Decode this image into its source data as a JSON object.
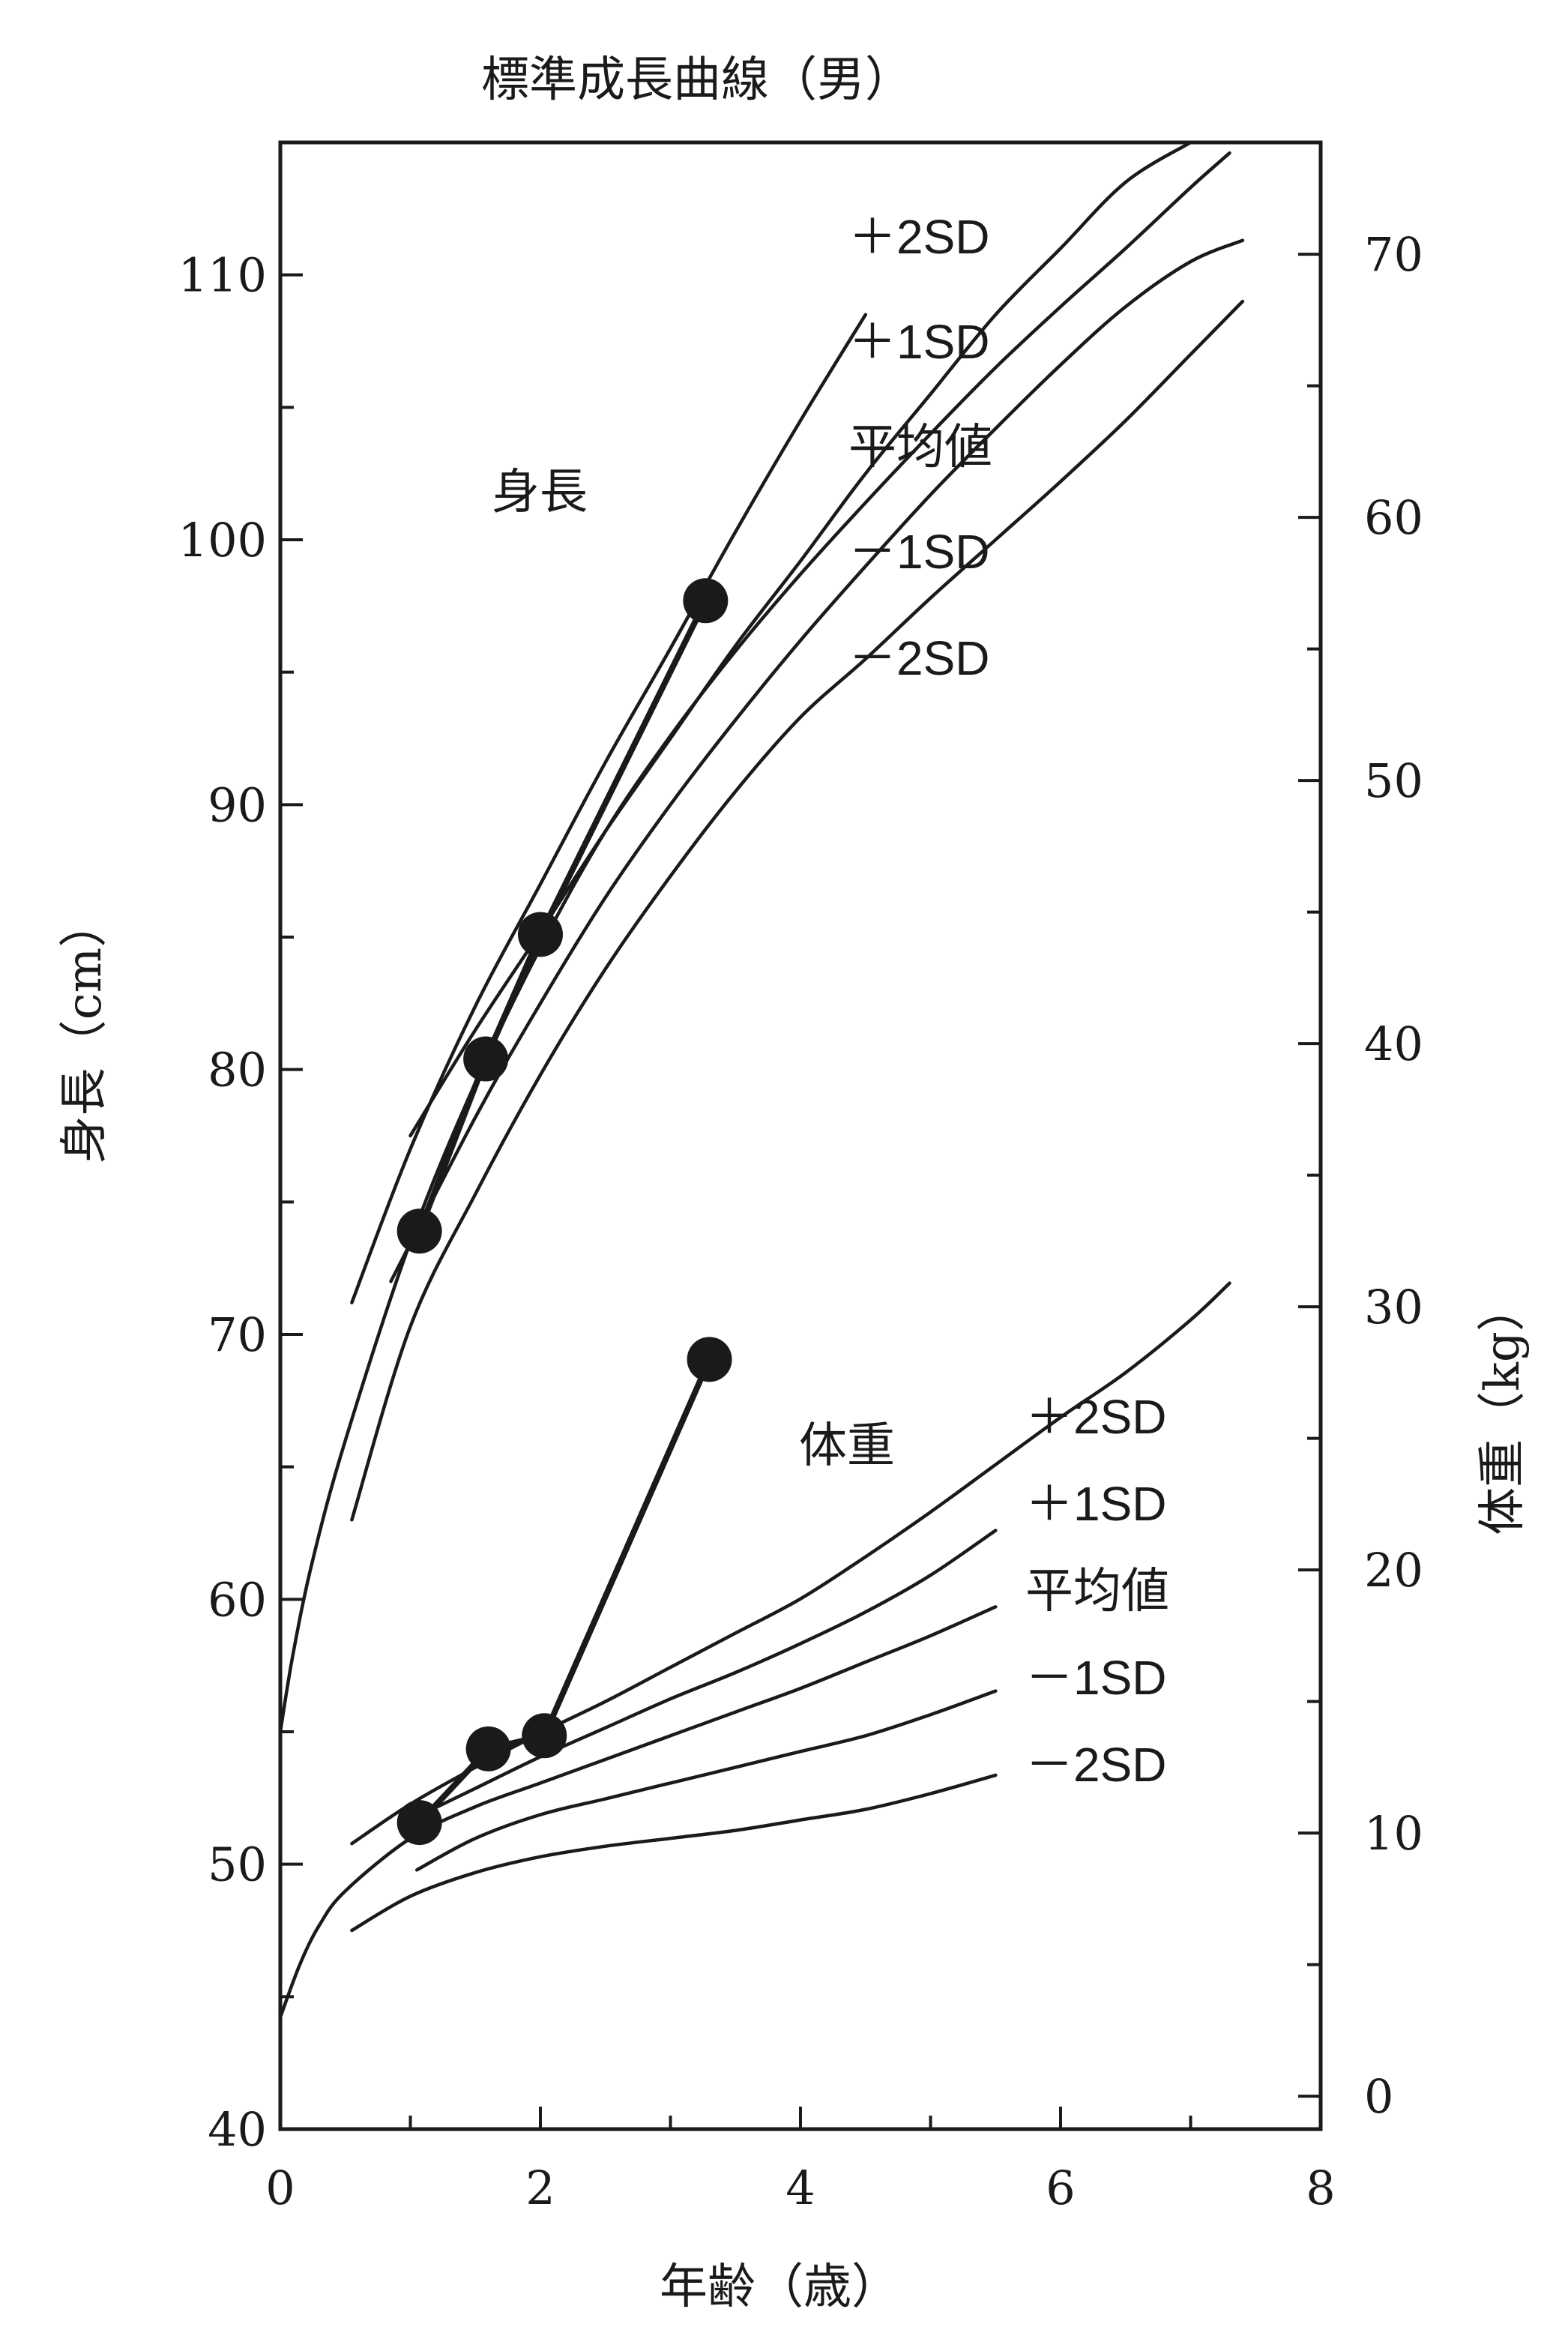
{
  "chart_data": {
    "type": "line",
    "title": "標準成長曲線（男）",
    "xlabel": "年齢（歳）",
    "ylabel_left": "身長（cm）",
    "ylabel_right": "体重（kg）",
    "xlim": [
      0,
      8
    ],
    "xticks": [
      0,
      2,
      4,
      6,
      8
    ],
    "ylim_left": [
      40,
      115
    ],
    "yticks_left": [
      40,
      50,
      60,
      70,
      80,
      90,
      100,
      110
    ],
    "ylim_right": [
      -1.25,
      74.25
    ],
    "yticks_right": [
      0,
      10,
      20,
      30,
      40,
      50,
      60,
      70
    ],
    "yticklabels_right": [
      "0",
      "10",
      "20",
      "30",
      "40",
      "50",
      "60",
      "70"
    ],
    "grid": false,
    "height_group": {
      "label": "身長",
      "axis": "left",
      "curves": [
        {
          "name": "＋2SD",
          "x": [
            0.55,
            1,
            1.5,
            2,
            2.5,
            3,
            3.5,
            4,
            4.5
          ],
          "y": [
            71.2,
            77.0,
            82.4,
            87.0,
            91.6,
            95.9,
            100.3,
            104.5,
            108.5
          ]
        },
        {
          "name": "＋1SD",
          "x": [
            1.0,
            1.5,
            2,
            2.5,
            3,
            3.5,
            4,
            4.5,
            5,
            5.5,
            6,
            6.5,
            7
          ],
          "y": [
            77.5,
            81.5,
            85.2,
            89.0,
            92.5,
            96.0,
            99.2,
            102.5,
            105.5,
            108.5,
            111.0,
            113.5,
            115.0
          ]
        },
        {
          "name": "平均値",
          "x": [
            0,
            0.1,
            0.25,
            0.5,
            1,
            1.5,
            2,
            2.5,
            3,
            3.5,
            4,
            4.5,
            5,
            5.5,
            6,
            6.5,
            7,
            7.3
          ],
          "y": [
            55,
            58,
            61.5,
            66,
            73.5,
            79.5,
            84.6,
            89.0,
            92.6,
            95.8,
            98.7,
            101.4,
            104.0,
            106.5,
            108.8,
            111.0,
            113.3,
            114.6
          ]
        },
        {
          "name": "－1SD",
          "x": [
            0.85,
            1.5,
            2,
            2.5,
            3,
            3.5,
            4,
            4.5,
            5,
            5.5,
            6,
            6.5,
            7,
            7.4
          ],
          "y": [
            72.0,
            78.2,
            82.5,
            86.5,
            90.0,
            93.2,
            96.2,
            99.0,
            101.7,
            104.2,
            106.6,
            108.8,
            110.5,
            111.3
          ]
        },
        {
          "name": "－2SD",
          "x": [
            0.55,
            1,
            1.5,
            2,
            2.5,
            3,
            3.5,
            4,
            4.5,
            5,
            5.5,
            6,
            6.5,
            7,
            7.4
          ],
          "y": [
            63.0,
            70.3,
            75.3,
            79.8,
            83.8,
            87.3,
            90.5,
            93.3,
            95.5,
            97.8,
            100.0,
            102.2,
            104.5,
            107.0,
            109.0
          ]
        }
      ],
      "points": {
        "x": [
          1.07,
          1.58,
          2.0,
          3.27
        ],
        "y": [
          73.9,
          80.4,
          85.1,
          97.7
        ]
      }
    },
    "weight_group": {
      "label": "体重",
      "axis": "right",
      "curves": [
        {
          "name": "＋2SD",
          "x": [
            0.55,
            1,
            1.5,
            2,
            2.5,
            3,
            3.5,
            4,
            4.5,
            5,
            5.5,
            6,
            6.5,
            7,
            7.3
          ],
          "y": [
            9.6,
            11.1,
            12.5,
            13.8,
            15.0,
            16.3,
            17.6,
            18.9,
            20.5,
            22.2,
            24.0,
            25.8,
            27.5,
            29.5,
            30.9
          ]
        },
        {
          "name": "＋1SD",
          "x": [
            1,
            1.5,
            2,
            2.5,
            3,
            3.5,
            4,
            4.5,
            5,
            5.5
          ],
          "y": [
            10.5,
            11.7,
            12.9,
            14.0,
            15.1,
            16.1,
            17.2,
            18.4,
            19.8,
            21.5
          ]
        },
        {
          "name": "平均値",
          "x": [
            0,
            0.15,
            0.3,
            0.5,
            1,
            1.5,
            2,
            2.5,
            3,
            3.5,
            4,
            4.5,
            5,
            5.5
          ],
          "y": [
            3.0,
            5.0,
            6.5,
            7.8,
            9.8,
            11.0,
            11.9,
            12.8,
            13.7,
            14.6,
            15.5,
            16.5,
            17.5,
            18.6
          ]
        },
        {
          "name": "－1SD",
          "x": [
            1.05,
            1.5,
            2,
            2.5,
            3,
            3.5,
            4,
            4.5,
            5,
            5.5
          ],
          "y": [
            8.6,
            9.8,
            10.7,
            11.3,
            11.9,
            12.5,
            13.1,
            13.7,
            14.5,
            15.4
          ]
        },
        {
          "name": "－2SD",
          "x": [
            0.55,
            1,
            1.5,
            2,
            2.5,
            3,
            3.5,
            4,
            4.5,
            5,
            5.5
          ],
          "y": [
            6.3,
            7.6,
            8.5,
            9.1,
            9.5,
            9.8,
            10.1,
            10.5,
            10.9,
            11.5,
            12.2
          ]
        }
      ],
      "points": {
        "x": [
          1.07,
          1.6,
          2.03,
          3.3
        ],
        "y": [
          10.4,
          13.2,
          13.7,
          28.0
        ]
      }
    },
    "annotations": {
      "height_curve_labels": [
        "＋2SD",
        "＋1SD",
        "平均値",
        "－1SD",
        "－2SD"
      ],
      "weight_curve_labels": [
        "＋2SD",
        "＋1SD",
        "平均値",
        "－1SD",
        "－2SD"
      ]
    }
  }
}
